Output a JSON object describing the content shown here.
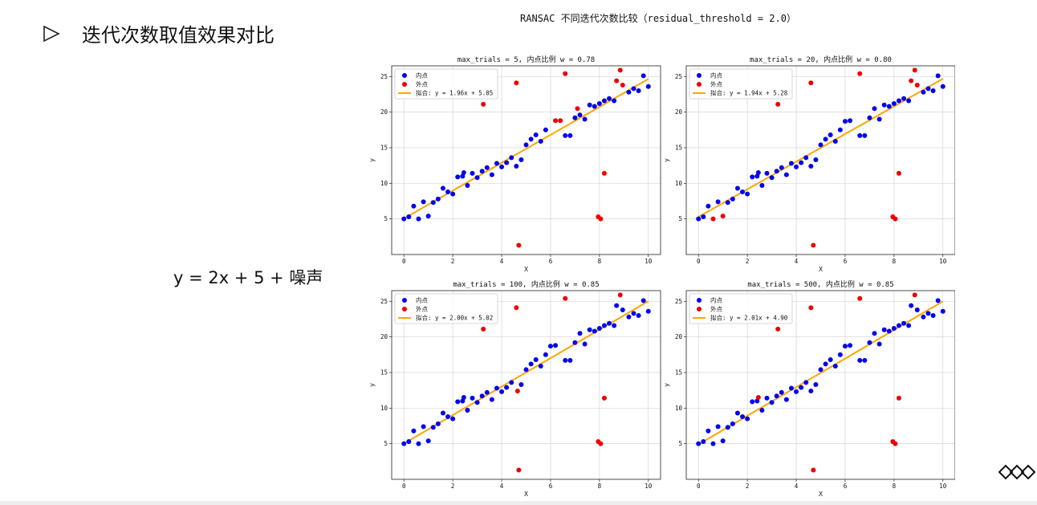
{
  "slide": {
    "heading": "迭代次数取值效果对比",
    "formula": "y = 2x + 5 + 噪声"
  },
  "figure": {
    "title": "RANSAC 不同迭代次数比较（residual_threshold = 2.0）"
  },
  "colors": {
    "inlier": "#0000ee",
    "outlier": "#ee0000",
    "fit": "#ffa500"
  },
  "chart_data": [
    {
      "type": "scatter",
      "title": "max_trials = 5, 内点比例 w = 0.78",
      "xlabel": "X",
      "ylabel": "y",
      "xlim": [
        -0.5,
        10.5
      ],
      "ylim": [
        0,
        26.5
      ],
      "xticks": [
        0,
        2,
        4,
        6,
        8,
        10
      ],
      "yticks": [
        5,
        10,
        15,
        20,
        25
      ],
      "legend": [
        "内点",
        "外点",
        "拟合: y = 1.96x + 5.05"
      ],
      "fit": {
        "slope": 1.96,
        "intercept": 5.05
      },
      "inliers": [
        [
          0,
          5.0
        ],
        [
          0.2,
          5.3
        ],
        [
          0.4,
          6.8
        ],
        [
          0.6,
          5.0
        ],
        [
          0.8,
          7.4
        ],
        [
          1.0,
          5.4
        ],
        [
          1.2,
          7.3
        ],
        [
          1.4,
          7.8
        ],
        [
          1.6,
          9.3
        ],
        [
          1.8,
          8.8
        ],
        [
          2.0,
          8.5
        ],
        [
          2.2,
          10.9
        ],
        [
          2.4,
          11.0
        ],
        [
          2.45,
          11.5
        ],
        [
          2.6,
          9.7
        ],
        [
          2.8,
          11.4
        ],
        [
          3.0,
          10.8
        ],
        [
          3.2,
          11.7
        ],
        [
          3.4,
          12.2
        ],
        [
          3.6,
          11.2
        ],
        [
          3.8,
          12.8
        ],
        [
          4.0,
          12.3
        ],
        [
          4.2,
          12.9
        ],
        [
          4.4,
          13.6
        ],
        [
          4.6,
          12.4
        ],
        [
          4.8,
          13.3
        ],
        [
          5.0,
          15.4
        ],
        [
          5.2,
          16.2
        ],
        [
          5.4,
          16.8
        ],
        [
          5.6,
          15.9
        ],
        [
          5.8,
          17.5
        ],
        [
          6.6,
          16.7
        ],
        [
          6.8,
          16.7
        ],
        [
          7.0,
          19.2
        ],
        [
          7.2,
          19.6
        ],
        [
          7.4,
          19.0
        ],
        [
          7.6,
          21.0
        ],
        [
          7.8,
          20.8
        ],
        [
          8.0,
          21.2
        ],
        [
          8.2,
          21.6
        ],
        [
          8.4,
          21.9
        ],
        [
          8.6,
          21.6
        ],
        [
          9.2,
          22.8
        ],
        [
          9.4,
          23.3
        ],
        [
          9.6,
          23.0
        ],
        [
          9.8,
          25.1
        ],
        [
          10.0,
          23.6
        ]
      ],
      "outliers": [
        [
          3.25,
          21.1
        ],
        [
          4.6,
          24.1
        ],
        [
          4.7,
          1.3
        ],
        [
          6.2,
          18.8
        ],
        [
          6.4,
          18.8
        ],
        [
          6.6,
          25.4
        ],
        [
          7.1,
          20.5
        ],
        [
          7.95,
          5.3
        ],
        [
          8.05,
          5.0
        ],
        [
          8.2,
          11.4
        ],
        [
          8.7,
          24.4
        ],
        [
          8.85,
          25.9
        ],
        [
          8.95,
          23.8
        ]
      ]
    },
    {
      "type": "scatter",
      "title": "max_trials = 20, 内点比例 w = 0.80",
      "xlabel": "X",
      "ylabel": "y",
      "xlim": [
        -0.5,
        10.5
      ],
      "ylim": [
        0,
        26.5
      ],
      "xticks": [
        0,
        2,
        4,
        6,
        8,
        10
      ],
      "yticks": [
        5,
        10,
        15,
        20,
        25
      ],
      "legend": [
        "内点",
        "外点",
        "拟合: y = 1.94x + 5.28"
      ],
      "fit": {
        "slope": 1.94,
        "intercept": 5.28
      },
      "inliers": [
        [
          0,
          5.0
        ],
        [
          0.2,
          5.3
        ],
        [
          0.4,
          6.8
        ],
        [
          0.8,
          7.4
        ],
        [
          1.2,
          7.3
        ],
        [
          1.4,
          7.8
        ],
        [
          1.6,
          9.3
        ],
        [
          1.8,
          8.8
        ],
        [
          2.0,
          8.5
        ],
        [
          2.2,
          10.9
        ],
        [
          2.4,
          11.0
        ],
        [
          2.45,
          11.5
        ],
        [
          2.6,
          9.7
        ],
        [
          2.8,
          11.4
        ],
        [
          3.0,
          10.8
        ],
        [
          3.2,
          11.7
        ],
        [
          3.4,
          12.2
        ],
        [
          3.6,
          11.2
        ],
        [
          3.8,
          12.8
        ],
        [
          4.0,
          12.3
        ],
        [
          4.2,
          12.9
        ],
        [
          4.4,
          13.6
        ],
        [
          4.6,
          12.4
        ],
        [
          4.8,
          13.3
        ],
        [
          5.0,
          15.4
        ],
        [
          5.2,
          16.2
        ],
        [
          5.4,
          16.8
        ],
        [
          5.6,
          15.9
        ],
        [
          5.8,
          17.5
        ],
        [
          6.0,
          18.7
        ],
        [
          6.2,
          18.8
        ],
        [
          6.6,
          16.7
        ],
        [
          6.8,
          16.7
        ],
        [
          7.0,
          19.2
        ],
        [
          7.2,
          20.5
        ],
        [
          7.4,
          19.0
        ],
        [
          7.6,
          21.0
        ],
        [
          7.8,
          20.8
        ],
        [
          8.0,
          21.2
        ],
        [
          8.2,
          21.6
        ],
        [
          8.4,
          21.9
        ],
        [
          8.6,
          21.6
        ],
        [
          9.2,
          22.8
        ],
        [
          9.4,
          23.3
        ],
        [
          9.6,
          23.0
        ],
        [
          9.8,
          25.1
        ],
        [
          10.0,
          23.6
        ]
      ],
      "outliers": [
        [
          0.6,
          5.0
        ],
        [
          1.0,
          5.4
        ],
        [
          3.25,
          21.1
        ],
        [
          4.6,
          24.1
        ],
        [
          4.7,
          1.3
        ],
        [
          6.6,
          25.4
        ],
        [
          7.95,
          5.3
        ],
        [
          8.05,
          5.0
        ],
        [
          8.2,
          11.4
        ],
        [
          8.7,
          24.4
        ],
        [
          8.85,
          25.9
        ],
        [
          8.95,
          23.8
        ]
      ]
    },
    {
      "type": "scatter",
      "title": "max_trials = 100, 内点比例 w = 0.85",
      "xlabel": "X",
      "ylabel": "y",
      "xlim": [
        -0.5,
        10.5
      ],
      "ylim": [
        0,
        26.5
      ],
      "xticks": [
        0,
        2,
        4,
        6,
        8,
        10
      ],
      "yticks": [
        5,
        10,
        15,
        20,
        25
      ],
      "legend": [
        "内点",
        "外点",
        "拟合: y = 2.00x + 5.02"
      ],
      "fit": {
        "slope": 2.0,
        "intercept": 5.02
      },
      "inliers": [
        [
          0,
          5.0
        ],
        [
          0.2,
          5.3
        ],
        [
          0.4,
          6.8
        ],
        [
          0.6,
          5.0
        ],
        [
          0.8,
          7.4
        ],
        [
          1.0,
          5.4
        ],
        [
          1.2,
          7.3
        ],
        [
          1.4,
          7.8
        ],
        [
          1.6,
          9.3
        ],
        [
          1.8,
          8.8
        ],
        [
          2.0,
          8.5
        ],
        [
          2.2,
          10.9
        ],
        [
          2.4,
          11.0
        ],
        [
          2.45,
          11.5
        ],
        [
          2.6,
          9.7
        ],
        [
          2.8,
          11.4
        ],
        [
          3.0,
          10.8
        ],
        [
          3.2,
          11.7
        ],
        [
          3.4,
          12.2
        ],
        [
          3.6,
          11.2
        ],
        [
          3.8,
          12.8
        ],
        [
          4.0,
          12.3
        ],
        [
          4.2,
          12.9
        ],
        [
          4.4,
          13.6
        ],
        [
          4.8,
          13.3
        ],
        [
          5.0,
          15.4
        ],
        [
          5.2,
          16.2
        ],
        [
          5.4,
          16.8
        ],
        [
          5.6,
          15.9
        ],
        [
          5.8,
          17.5
        ],
        [
          6.0,
          18.7
        ],
        [
          6.2,
          18.8
        ],
        [
          6.6,
          16.7
        ],
        [
          6.8,
          16.7
        ],
        [
          7.0,
          19.2
        ],
        [
          7.2,
          20.5
        ],
        [
          7.4,
          19.0
        ],
        [
          7.6,
          21.0
        ],
        [
          7.8,
          20.8
        ],
        [
          8.0,
          21.2
        ],
        [
          8.2,
          21.6
        ],
        [
          8.4,
          21.9
        ],
        [
          8.6,
          21.6
        ],
        [
          8.7,
          24.4
        ],
        [
          8.95,
          23.8
        ],
        [
          9.2,
          22.8
        ],
        [
          9.4,
          23.3
        ],
        [
          9.6,
          23.0
        ],
        [
          9.8,
          25.1
        ],
        [
          10.0,
          23.6
        ]
      ],
      "outliers": [
        [
          3.25,
          21.1
        ],
        [
          4.6,
          24.1
        ],
        [
          4.65,
          12.4
        ],
        [
          4.7,
          1.3
        ],
        [
          6.6,
          25.4
        ],
        [
          7.95,
          5.3
        ],
        [
          8.05,
          5.0
        ],
        [
          8.2,
          11.4
        ],
        [
          8.85,
          25.9
        ]
      ]
    },
    {
      "type": "scatter",
      "title": "max_trials = 500, 内点比例 w = 0.85",
      "xlabel": "X",
      "ylabel": "y",
      "xlim": [
        -0.5,
        10.5
      ],
      "ylim": [
        0,
        26.5
      ],
      "xticks": [
        0,
        2,
        4,
        6,
        8,
        10
      ],
      "yticks": [
        5,
        10,
        15,
        20,
        25
      ],
      "legend": [
        "内点",
        "外点",
        "拟合: y = 2.01x + 4.90"
      ],
      "fit": {
        "slope": 2.01,
        "intercept": 4.9
      },
      "inliers": [
        [
          0,
          5.0
        ],
        [
          0.2,
          5.3
        ],
        [
          0.4,
          6.8
        ],
        [
          0.6,
          5.0
        ],
        [
          0.8,
          7.4
        ],
        [
          1.0,
          5.4
        ],
        [
          1.2,
          7.3
        ],
        [
          1.4,
          7.8
        ],
        [
          1.6,
          9.3
        ],
        [
          1.8,
          8.8
        ],
        [
          2.0,
          8.5
        ],
        [
          2.2,
          10.9
        ],
        [
          2.4,
          11.0
        ],
        [
          2.6,
          9.7
        ],
        [
          2.8,
          11.4
        ],
        [
          3.0,
          10.8
        ],
        [
          3.2,
          11.7
        ],
        [
          3.4,
          12.2
        ],
        [
          3.6,
          11.2
        ],
        [
          3.8,
          12.8
        ],
        [
          4.0,
          12.3
        ],
        [
          4.2,
          12.9
        ],
        [
          4.4,
          13.6
        ],
        [
          4.6,
          12.4
        ],
        [
          4.8,
          13.3
        ],
        [
          5.0,
          15.4
        ],
        [
          5.2,
          16.2
        ],
        [
          5.4,
          16.8
        ],
        [
          5.6,
          15.9
        ],
        [
          5.8,
          17.5
        ],
        [
          6.0,
          18.7
        ],
        [
          6.2,
          18.8
        ],
        [
          6.6,
          16.7
        ],
        [
          6.8,
          16.7
        ],
        [
          7.0,
          19.2
        ],
        [
          7.2,
          20.5
        ],
        [
          7.4,
          19.0
        ],
        [
          7.6,
          21.0
        ],
        [
          7.8,
          20.8
        ],
        [
          8.0,
          21.2
        ],
        [
          8.2,
          21.6
        ],
        [
          8.4,
          21.9
        ],
        [
          8.6,
          21.6
        ],
        [
          8.7,
          24.4
        ],
        [
          8.95,
          23.8
        ],
        [
          9.2,
          22.8
        ],
        [
          9.4,
          23.3
        ],
        [
          9.6,
          23.0
        ],
        [
          9.8,
          25.1
        ],
        [
          10.0,
          23.6
        ]
      ],
      "outliers": [
        [
          2.45,
          11.5
        ],
        [
          3.25,
          21.1
        ],
        [
          4.6,
          24.1
        ],
        [
          4.7,
          1.3
        ],
        [
          6.6,
          25.4
        ],
        [
          7.95,
          5.3
        ],
        [
          8.05,
          5.0
        ],
        [
          8.2,
          11.4
        ],
        [
          8.85,
          25.9
        ]
      ]
    }
  ]
}
